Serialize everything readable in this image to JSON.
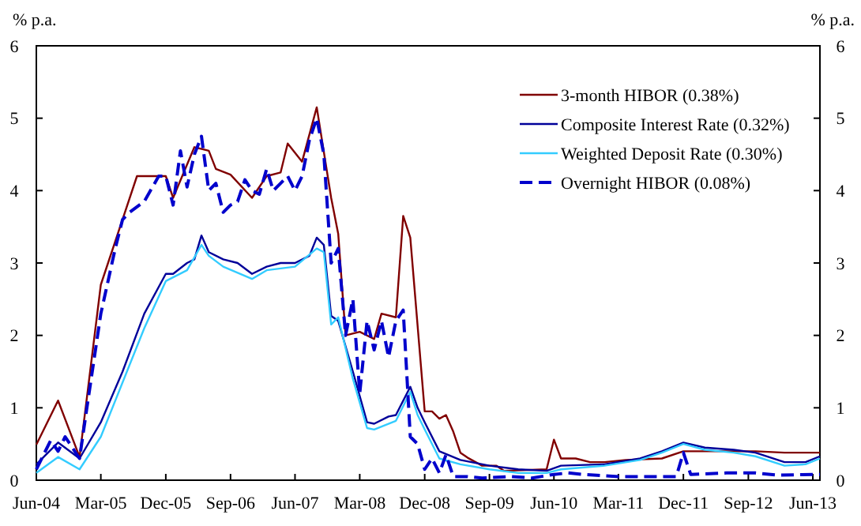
{
  "chart_data": {
    "type": "line",
    "ylabel": "% p.a.",
    "y2label": "% p.a.",
    "xlim": [
      "2004-06",
      "2013-07"
    ],
    "ylim": [
      0,
      6
    ],
    "yticks": [
      0,
      1,
      2,
      3,
      4,
      5,
      6
    ],
    "y2lim": [
      0,
      6
    ],
    "y2ticks": [
      0,
      1,
      2,
      3,
      4,
      5,
      6
    ],
    "xticks": [
      {
        "value": "2004-06",
        "label": "Jun-04"
      },
      {
        "value": "2005-03",
        "label": "Mar-05"
      },
      {
        "value": "2005-12",
        "label": "Dec-05"
      },
      {
        "value": "2006-09",
        "label": "Sep-06"
      },
      {
        "value": "2007-06",
        "label": "Jun-07"
      },
      {
        "value": "2008-03",
        "label": "Mar-08"
      },
      {
        "value": "2008-12",
        "label": "Dec-08"
      },
      {
        "value": "2009-09",
        "label": "Sep-09"
      },
      {
        "value": "2010-06",
        "label": "Jun-10"
      },
      {
        "value": "2011-03",
        "label": "Mar-11"
      },
      {
        "value": "2011-12",
        "label": "Dec-11"
      },
      {
        "value": "2012-09",
        "label": "Sep-12"
      },
      {
        "value": "2013-06",
        "label": "Jun-13"
      }
    ],
    "legend": "top right",
    "grid": false,
    "marker": "none",
    "series": [
      {
        "name": "3-month HIBOR (0.38%)",
        "color": "#800000",
        "line_style": "solid",
        "x": [
          "2004-06",
          "2004-09",
          "2004-12",
          "2005-03",
          "2005-08",
          "2005-12",
          "2006-01",
          "2006-04",
          "2006-06",
          "2006-07",
          "2006-09",
          "2006-12",
          "2007-02",
          "2007-04",
          "2007-05",
          "2007-07",
          "2007-09",
          "2007-11",
          "2007-12",
          "2008-01",
          "2008-03",
          "2008-05",
          "2008-06",
          "2008-08",
          "2008-09",
          "2008-10",
          "2008-12",
          "2009-01",
          "2009-02",
          "2009-03",
          "2009-04",
          "2009-05",
          "2009-06",
          "2009-08",
          "2009-10",
          "2009-11",
          "2010-05",
          "2010-06",
          "2010-07",
          "2010-09",
          "2010-11",
          "2011-01",
          "2011-04",
          "2011-09",
          "2011-12",
          "2012-04",
          "2012-10",
          "2013-02",
          "2013-07"
        ],
        "values": [
          0.49,
          1.1,
          0.32,
          2.7,
          4.2,
          4.2,
          3.9,
          4.6,
          4.55,
          4.3,
          4.22,
          3.9,
          4.2,
          4.25,
          4.65,
          4.4,
          5.15,
          3.9,
          3.4,
          2.0,
          2.05,
          1.95,
          2.3,
          2.25,
          3.65,
          3.35,
          0.95,
          0.95,
          0.85,
          0.9,
          0.67,
          0.38,
          0.31,
          0.2,
          0.2,
          0.13,
          0.15,
          0.56,
          0.3,
          0.3,
          0.25,
          0.25,
          0.28,
          0.3,
          0.4,
          0.4,
          0.4,
          0.38,
          0.38
        ]
      },
      {
        "name": "Composite Interest Rate (0.32%)",
        "color": "#000099",
        "line_style": "solid",
        "x": [
          "2004-06",
          "2004-09",
          "2004-12",
          "2005-03",
          "2005-06",
          "2005-09",
          "2005-12",
          "2006-01",
          "2006-03",
          "2006-04",
          "2006-05",
          "2006-06",
          "2006-08",
          "2006-10",
          "2006-12",
          "2007-02",
          "2007-04",
          "2007-06",
          "2007-08",
          "2007-09",
          "2007-10",
          "2007-11",
          "2007-12",
          "2008-02",
          "2008-04",
          "2008-05",
          "2008-07",
          "2008-08",
          "2008-10",
          "2008-11",
          "2008-12",
          "2009-02",
          "2009-05",
          "2009-09",
          "2010-01",
          "2010-05",
          "2010-07",
          "2011-01",
          "2011-06",
          "2011-09",
          "2011-12",
          "2012-03",
          "2012-07",
          "2012-10",
          "2013-02",
          "2013-05",
          "2013-07"
        ],
        "values": [
          0.22,
          0.52,
          0.3,
          0.8,
          1.5,
          2.3,
          2.85,
          2.85,
          3.0,
          3.05,
          3.38,
          3.15,
          3.05,
          3.0,
          2.85,
          2.95,
          3.0,
          3.0,
          3.1,
          3.35,
          3.25,
          2.27,
          2.2,
          1.5,
          0.8,
          0.78,
          0.88,
          0.9,
          1.29,
          1.0,
          0.8,
          0.4,
          0.28,
          0.2,
          0.15,
          0.13,
          0.2,
          0.22,
          0.3,
          0.4,
          0.52,
          0.45,
          0.42,
          0.38,
          0.25,
          0.25,
          0.33
        ]
      },
      {
        "name": "Weighted Deposit Rate (0.30%)",
        "color": "#33ccff",
        "line_style": "solid",
        "x": [
          "2004-06",
          "2004-09",
          "2004-12",
          "2005-03",
          "2005-09",
          "2005-12",
          "2006-03",
          "2006-05",
          "2006-06",
          "2006-08",
          "2006-12",
          "2007-02",
          "2007-06",
          "2007-09",
          "2007-10",
          "2007-11",
          "2007-12",
          "2008-02",
          "2008-04",
          "2008-05",
          "2008-08",
          "2008-10",
          "2008-11",
          "2008-12",
          "2009-02",
          "2009-05",
          "2009-09",
          "2010-01",
          "2010-05",
          "2010-07",
          "2011-01",
          "2011-06",
          "2011-09",
          "2011-12",
          "2012-03",
          "2012-07",
          "2012-10",
          "2013-02",
          "2013-05",
          "2013-07"
        ],
        "values": [
          0.1,
          0.32,
          0.15,
          0.6,
          2.1,
          2.75,
          2.9,
          3.25,
          3.1,
          2.95,
          2.78,
          2.9,
          2.95,
          3.2,
          3.15,
          2.15,
          2.25,
          1.4,
          0.72,
          0.7,
          0.82,
          1.22,
          0.9,
          0.7,
          0.3,
          0.22,
          0.15,
          0.1,
          0.1,
          0.15,
          0.2,
          0.28,
          0.38,
          0.5,
          0.42,
          0.38,
          0.33,
          0.2,
          0.22,
          0.3
        ]
      },
      {
        "name": "Overnight HIBOR (0.08%)",
        "color": "#0000cc",
        "line_style": "dashed",
        "x": [
          "2004-06",
          "2004-08",
          "2004-09",
          "2004-10",
          "2004-12",
          "2005-01",
          "2005-03",
          "2005-05",
          "2005-06",
          "2005-07",
          "2005-09",
          "2005-11",
          "2005-12",
          "2006-01",
          "2006-02",
          "2006-03",
          "2006-04",
          "2006-05",
          "2006-06",
          "2006-07",
          "2006-08",
          "2006-09",
          "2006-10",
          "2006-11",
          "2006-12",
          "2007-01",
          "2007-02",
          "2007-03",
          "2007-04",
          "2007-05",
          "2007-06",
          "2007-07",
          "2007-08",
          "2007-09",
          "2007-10",
          "2007-11",
          "2007-12",
          "2008-01",
          "2008-02",
          "2008-03",
          "2008-04",
          "2008-05",
          "2008-06",
          "2008-07",
          "2008-08",
          "2008-09",
          "2008-10",
          "2008-11",
          "2008-12",
          "2009-01",
          "2009-02",
          "2009-03",
          "2009-04",
          "2009-06",
          "2009-08",
          "2009-12",
          "2010-03",
          "2010-06",
          "2010-08",
          "2010-10",
          "2011-03",
          "2011-11",
          "2011-12",
          "2012-01",
          "2012-06",
          "2012-10",
          "2013-01",
          "2013-07"
        ],
        "values": [
          0.15,
          0.55,
          0.4,
          0.6,
          0.3,
          1.0,
          2.3,
          3.2,
          3.6,
          3.7,
          3.85,
          4.2,
          4.2,
          3.8,
          4.55,
          4.05,
          4.5,
          4.75,
          4.0,
          4.1,
          3.7,
          3.8,
          3.85,
          4.15,
          4.0,
          3.95,
          4.3,
          4.0,
          4.1,
          4.2,
          4.0,
          4.2,
          4.7,
          5.0,
          4.5,
          3.0,
          3.2,
          2.0,
          2.5,
          1.2,
          2.2,
          1.8,
          2.2,
          1.7,
          2.2,
          2.35,
          0.6,
          0.5,
          0.15,
          0.3,
          0.1,
          0.35,
          0.05,
          0.05,
          0.03,
          0.05,
          0.03,
          0.08,
          0.1,
          0.08,
          0.05,
          0.05,
          0.38,
          0.08,
          0.1,
          0.1,
          0.07,
          0.08
        ]
      }
    ]
  }
}
